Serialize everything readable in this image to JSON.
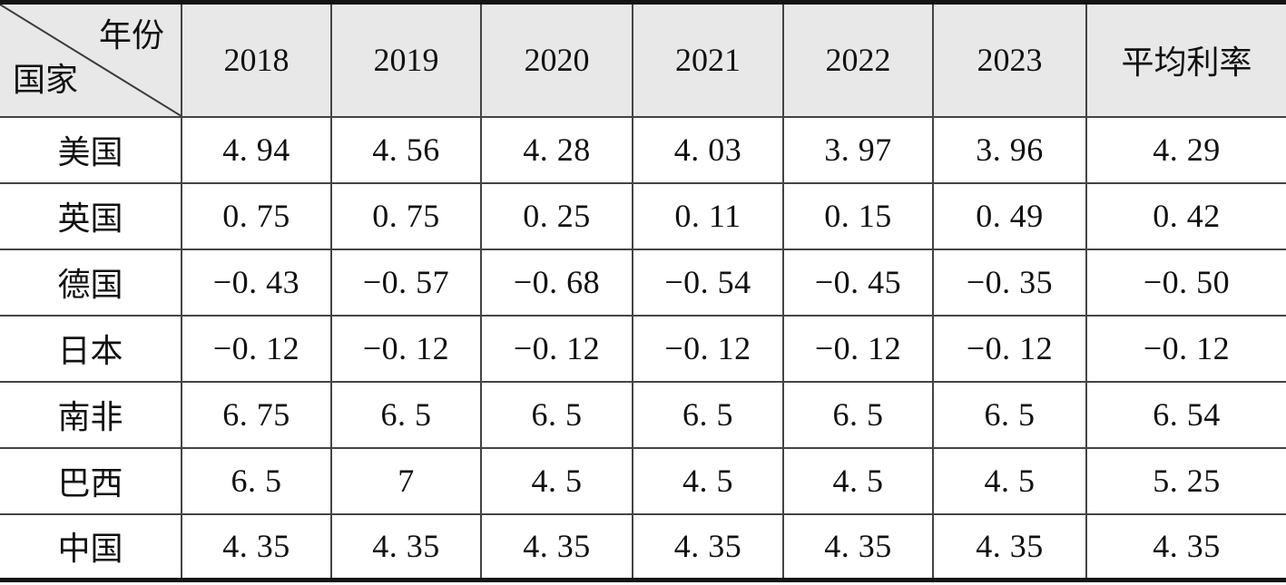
{
  "colors": {
    "header_background": "#e8e8e8",
    "grid_line": "#444444",
    "frame_line": "#141414",
    "text": "#111111"
  },
  "table": {
    "corner": {
      "top_right": "年份",
      "bottom_left": "国家"
    },
    "columns": [
      "2018",
      "2019",
      "2020",
      "2021",
      "2022",
      "2023",
      "平均利率"
    ],
    "rows": [
      {
        "country": "美国",
        "values": [
          "4. 94",
          "4. 56",
          "4. 28",
          "4. 03",
          "3. 97",
          "3. 96",
          "4. 29"
        ]
      },
      {
        "country": "英国",
        "values": [
          "0. 75",
          "0. 75",
          "0. 25",
          "0. 11",
          "0. 15",
          "0. 49",
          "0. 42"
        ]
      },
      {
        "country": "德国",
        "values": [
          "−0. 43",
          "−0. 57",
          "−0. 68",
          "−0. 54",
          "−0. 45",
          "−0. 35",
          "−0. 50"
        ]
      },
      {
        "country": "日本",
        "values": [
          "−0. 12",
          "−0. 12",
          "−0. 12",
          "−0. 12",
          "−0. 12",
          "−0. 12",
          "−0. 12"
        ]
      },
      {
        "country": "南非",
        "values": [
          "6. 75",
          "6. 5",
          "6. 5",
          "6. 5",
          "6. 5",
          "6. 5",
          "6. 54"
        ]
      },
      {
        "country": "巴西",
        "values": [
          "6. 5",
          "7",
          "4. 5",
          "4. 5",
          "4. 5",
          "4. 5",
          "5. 25"
        ]
      },
      {
        "country": "中国",
        "values": [
          "4. 35",
          "4. 35",
          "4. 35",
          "4. 35",
          "4. 35",
          "4. 35",
          "4. 35"
        ]
      }
    ]
  },
  "chart_data": {
    "type": "table",
    "column_header_label": "年份",
    "row_header_label": "国家",
    "categories": [
      "2018",
      "2019",
      "2020",
      "2021",
      "2022",
      "2023"
    ],
    "average_column_label": "平均利率",
    "series": [
      {
        "name": "美国",
        "values": [
          4.94,
          4.56,
          4.28,
          4.03,
          3.97,
          3.96
        ],
        "average": 4.29
      },
      {
        "name": "英国",
        "values": [
          0.75,
          0.75,
          0.25,
          0.11,
          0.15,
          0.49
        ],
        "average": 0.42
      },
      {
        "name": "德国",
        "values": [
          -0.43,
          -0.57,
          -0.68,
          -0.54,
          -0.45,
          -0.35
        ],
        "average": -0.5
      },
      {
        "name": "日本",
        "values": [
          -0.12,
          -0.12,
          -0.12,
          -0.12,
          -0.12,
          -0.12
        ],
        "average": -0.12
      },
      {
        "name": "南非",
        "values": [
          6.75,
          6.5,
          6.5,
          6.5,
          6.5,
          6.5
        ],
        "average": 6.54
      },
      {
        "name": "巴西",
        "values": [
          6.5,
          7,
          4.5,
          4.5,
          4.5,
          4.5
        ],
        "average": 5.25
      },
      {
        "name": "中国",
        "values": [
          4.35,
          4.35,
          4.35,
          4.35,
          4.35,
          4.35
        ],
        "average": 4.35
      }
    ]
  }
}
